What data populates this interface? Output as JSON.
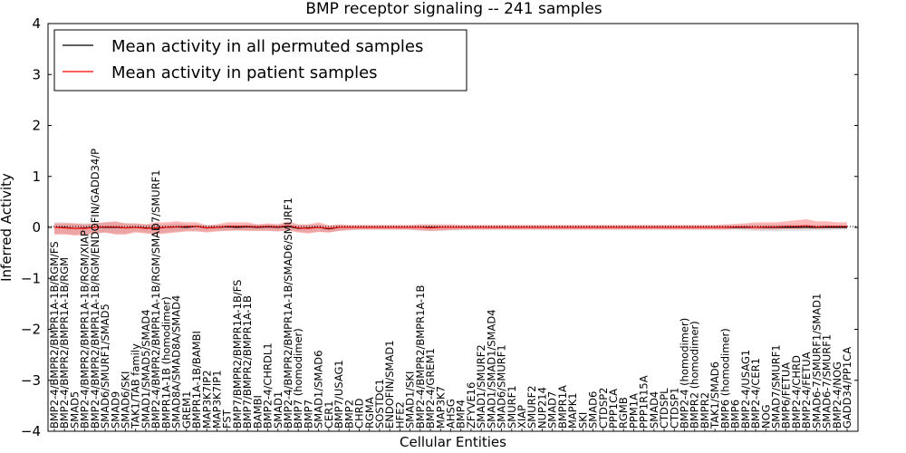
{
  "chart_data": {
    "type": "line",
    "title": "BMP receptor signaling -- 241 samples",
    "xlabel": "Cellular Entities",
    "ylabel": "Inferred Activity",
    "ylim": [
      -4,
      4
    ],
    "yticks": [
      "4",
      "3",
      "2",
      "1",
      "0",
      "−1",
      "−2",
      "−3",
      "−4"
    ],
    "grid": false,
    "legend_position": "top-left",
    "categories": [
      "BMP2-4/BMPR2/BMPR1A-1B/RGM/FS",
      "BMP2-4/BMPR2/BMPR1A-1B/RGM",
      "SMAD5",
      "BMP2-4/BMPR2/BMPR1A-1B/RGM/XIAP",
      "BMP2-4/BMPR2/BMPR1A-1B/RGM/ENDOFIN/GADD34/P",
      "SMAD6/SMURF1/SMAD5",
      "SMAD9",
      "SMAD6/SKI",
      "TAK1/TAB family",
      "SMAD1/SMAD5/SMAD4",
      "BMP2-4/BMPR2/BMPR1A-1B/RGM/SMAD7/SMURF1",
      "BMPR1A-1B (homodimer)",
      "SMAD8A/SMAD8A/SMAD4",
      "GREM1",
      "BMPR1A-1B/BAMBI",
      "MAP3K7IP2",
      "MAP3K7IP1",
      "FST",
      "BMP7/BMPR2/BMPR1A-1B/FS",
      "BMP7/BMPR2/BMPR1A-1B",
      "BAMBI",
      "BMP2-4/CHRDL1",
      "SMAD1",
      "BMP2-4/BMPR2/BMPR1A-1B/SMAD6/SMURF1",
      "BMP7 (homodimer)",
      "BMP7",
      "SMAD1/SMAD6",
      "CER1",
      "BMP7/USAG1",
      "BMP2",
      "CHRD",
      "RGMA",
      "SOSTDC1",
      "ENDOFIN/SMAD1",
      "HFE2",
      "SMAD1/SKI",
      "BMP2-4/BMPR2/BMPR1A-1B",
      "BMP2-4/GREM1",
      "MAP3K7",
      "AHSG",
      "BMP4",
      "ZFYVE16",
      "SMAD1/SMURF2",
      "SMAD1/SMAD1/SMAD4",
      "SMAD6/SMURF1",
      "SMURF1",
      "XIAP",
      "SMURF2",
      "NUP214",
      "SMAD7",
      "BMPR1A",
      "MAPK1",
      "SKI",
      "SMAD6",
      "CTDSP2",
      "PPP1CA",
      "RGMB",
      "PPM1A",
      "PPP1R15A",
      "SMAD4",
      "CTDSPL",
      "CTDSP1",
      "BMP2-4 (homodimer)",
      "BMPR2 (homodimer)",
      "BMPR2",
      "TAK1/SMAD6",
      "BMP6 (homodimer)",
      "BMP6",
      "BMP2-4/USAG1",
      "BMP2-4/CER1",
      "NOG",
      "SMAD7/SMURF1",
      "BMP6/FETUA",
      "BMP2-4/CHRD",
      "BMP2-4/FETUA",
      "SMAD6-7/SMURF1/SMAD1",
      "SMAD6-7/SMURF1",
      "BMP2-4/NOG",
      "GADD34/PP1CA"
    ],
    "series": [
      {
        "name": "Mean activity in all permuted samples",
        "color": "#000000",
        "values": [
          0.0,
          0.0,
          -0.02,
          -0.01,
          0.0,
          0.0,
          0.0,
          -0.01,
          0.0,
          -0.01,
          -0.02,
          0.0,
          0.01,
          0.0,
          0.02,
          -0.01,
          0.0,
          0.01,
          0.0,
          0.01,
          0.0,
          0.01,
          0.0,
          0.02,
          -0.02,
          -0.01,
          0.0,
          -0.03,
          0.0,
          0.0,
          0.0,
          0.0,
          0.0,
          0.0,
          0.0,
          0.0,
          0.0,
          0.0,
          0.0,
          0.0,
          0.0,
          0.0,
          0.0,
          0.0,
          0.0,
          0.0,
          0.0,
          0.0,
          0.0,
          0.0,
          0.0,
          0.0,
          0.0,
          0.0,
          0.0,
          0.0,
          0.0,
          0.0,
          0.0,
          0.0,
          0.0,
          0.0,
          0.0,
          0.0,
          0.0,
          0.0,
          0.0,
          0.0,
          0.0,
          0.0,
          0.0,
          0.0,
          0.0,
          0.0,
          0.0,
          0.0,
          0.0,
          0.0,
          0.0
        ],
        "lower": [
          -0.12,
          -0.12,
          -0.14,
          -0.13,
          -0.1,
          -0.1,
          -0.12,
          -0.12,
          -0.08,
          -0.1,
          -0.12,
          -0.1,
          -0.08,
          -0.06,
          -0.06,
          -0.08,
          -0.06,
          -0.06,
          -0.06,
          -0.06,
          -0.06,
          -0.06,
          -0.07,
          -0.06,
          -0.08,
          -0.1,
          -0.08,
          -0.1,
          -0.07,
          -0.06,
          -0.05,
          -0.05,
          -0.05,
          -0.05,
          -0.05,
          -0.05,
          -0.06,
          -0.07,
          -0.07,
          -0.06,
          -0.06,
          -0.05,
          -0.05,
          -0.05,
          -0.05,
          -0.05,
          -0.05,
          -0.05,
          -0.05,
          -0.05,
          -0.05,
          -0.05,
          -0.05,
          -0.05,
          -0.05,
          -0.05,
          -0.05,
          -0.05,
          -0.05,
          -0.05,
          -0.05,
          -0.05,
          -0.05,
          -0.05,
          -0.05,
          -0.05,
          -0.05,
          -0.05,
          -0.06,
          -0.07,
          -0.07,
          -0.08,
          -0.07,
          -0.07,
          -0.07,
          -0.06,
          -0.06,
          -0.05,
          -0.05
        ],
        "upper": [
          0.1,
          0.1,
          0.08,
          0.08,
          0.08,
          0.1,
          0.1,
          0.08,
          0.08,
          0.06,
          0.04,
          0.06,
          0.08,
          0.06,
          0.06,
          0.05,
          0.05,
          0.06,
          0.05,
          0.06,
          0.05,
          0.06,
          0.06,
          0.07,
          0.04,
          0.05,
          0.06,
          0.02,
          0.05,
          0.04,
          0.04,
          0.04,
          0.04,
          0.04,
          0.04,
          0.04,
          0.05,
          0.05,
          0.04,
          0.04,
          0.04,
          0.04,
          0.04,
          0.04,
          0.04,
          0.04,
          0.04,
          0.04,
          0.04,
          0.04,
          0.04,
          0.04,
          0.04,
          0.04,
          0.04,
          0.04,
          0.04,
          0.04,
          0.04,
          0.04,
          0.04,
          0.04,
          0.04,
          0.04,
          0.04,
          0.04,
          0.04,
          0.04,
          0.05,
          0.06,
          0.06,
          0.06,
          0.06,
          0.06,
          0.06,
          0.05,
          0.05,
          0.04,
          0.04
        ]
      },
      {
        "name": "Mean activity in patient samples",
        "color": "#ff0000",
        "values": [
          0.0,
          -0.01,
          -0.02,
          -0.02,
          0.0,
          0.01,
          0.01,
          -0.01,
          0.0,
          -0.02,
          -0.01,
          0.0,
          0.01,
          0.02,
          0.02,
          -0.01,
          0.0,
          0.02,
          0.02,
          0.02,
          0.01,
          0.02,
          0.01,
          0.03,
          -0.01,
          -0.02,
          0.0,
          -0.02,
          0.0,
          0.0,
          0.0,
          0.0,
          0.0,
          0.0,
          0.0,
          0.0,
          0.0,
          -0.01,
          0.0,
          0.0,
          0.0,
          0.0,
          0.0,
          0.0,
          0.0,
          0.0,
          0.0,
          0.0,
          0.0,
          0.0,
          0.0,
          0.0,
          0.0,
          0.0,
          0.0,
          0.0,
          0.0,
          0.0,
          0.0,
          0.0,
          0.0,
          0.0,
          0.0,
          0.0,
          0.0,
          0.0,
          0.0,
          0.01,
          0.01,
          0.0,
          0.01,
          0.01,
          0.02,
          0.02,
          0.03,
          0.01,
          0.02,
          0.02,
          0.02
        ],
        "lower": [
          -0.14,
          -0.14,
          -0.16,
          -0.15,
          -0.12,
          -0.1,
          -0.14,
          -0.14,
          -0.1,
          -0.12,
          -0.14,
          -0.12,
          -0.1,
          -0.08,
          -0.08,
          -0.1,
          -0.08,
          -0.07,
          -0.06,
          -0.07,
          -0.07,
          -0.07,
          -0.08,
          -0.06,
          -0.1,
          -0.12,
          -0.09,
          -0.1,
          -0.07,
          -0.05,
          -0.04,
          -0.04,
          -0.04,
          -0.04,
          -0.04,
          -0.04,
          -0.06,
          -0.07,
          -0.06,
          -0.05,
          -0.04,
          -0.04,
          -0.04,
          -0.04,
          -0.04,
          -0.04,
          -0.04,
          -0.04,
          -0.04,
          -0.04,
          -0.04,
          -0.04,
          -0.04,
          -0.04,
          -0.04,
          -0.04,
          -0.04,
          -0.04,
          -0.04,
          -0.04,
          -0.04,
          -0.04,
          -0.04,
          -0.04,
          -0.04,
          -0.04,
          -0.04,
          -0.03,
          -0.03,
          -0.04,
          -0.04,
          -0.04,
          -0.03,
          -0.03,
          -0.02,
          -0.03,
          -0.02,
          -0.02,
          -0.02
        ],
        "upper": [
          0.08,
          0.08,
          0.08,
          0.06,
          0.08,
          0.1,
          0.12,
          0.08,
          0.08,
          0.06,
          0.1,
          0.1,
          0.12,
          0.1,
          0.1,
          0.04,
          0.06,
          0.1,
          0.1,
          0.1,
          0.06,
          0.08,
          0.06,
          0.12,
          0.06,
          0.06,
          0.1,
          0.04,
          0.06,
          0.05,
          0.05,
          0.05,
          0.05,
          0.05,
          0.05,
          0.05,
          0.06,
          0.06,
          0.06,
          0.06,
          0.05,
          0.05,
          0.05,
          0.05,
          0.05,
          0.05,
          0.05,
          0.05,
          0.05,
          0.05,
          0.05,
          0.05,
          0.05,
          0.05,
          0.05,
          0.05,
          0.05,
          0.05,
          0.05,
          0.05,
          0.05,
          0.05,
          0.05,
          0.05,
          0.05,
          0.05,
          0.06,
          0.07,
          0.08,
          0.1,
          0.1,
          0.1,
          0.12,
          0.14,
          0.16,
          0.12,
          0.12,
          0.1,
          0.1
        ]
      }
    ]
  }
}
